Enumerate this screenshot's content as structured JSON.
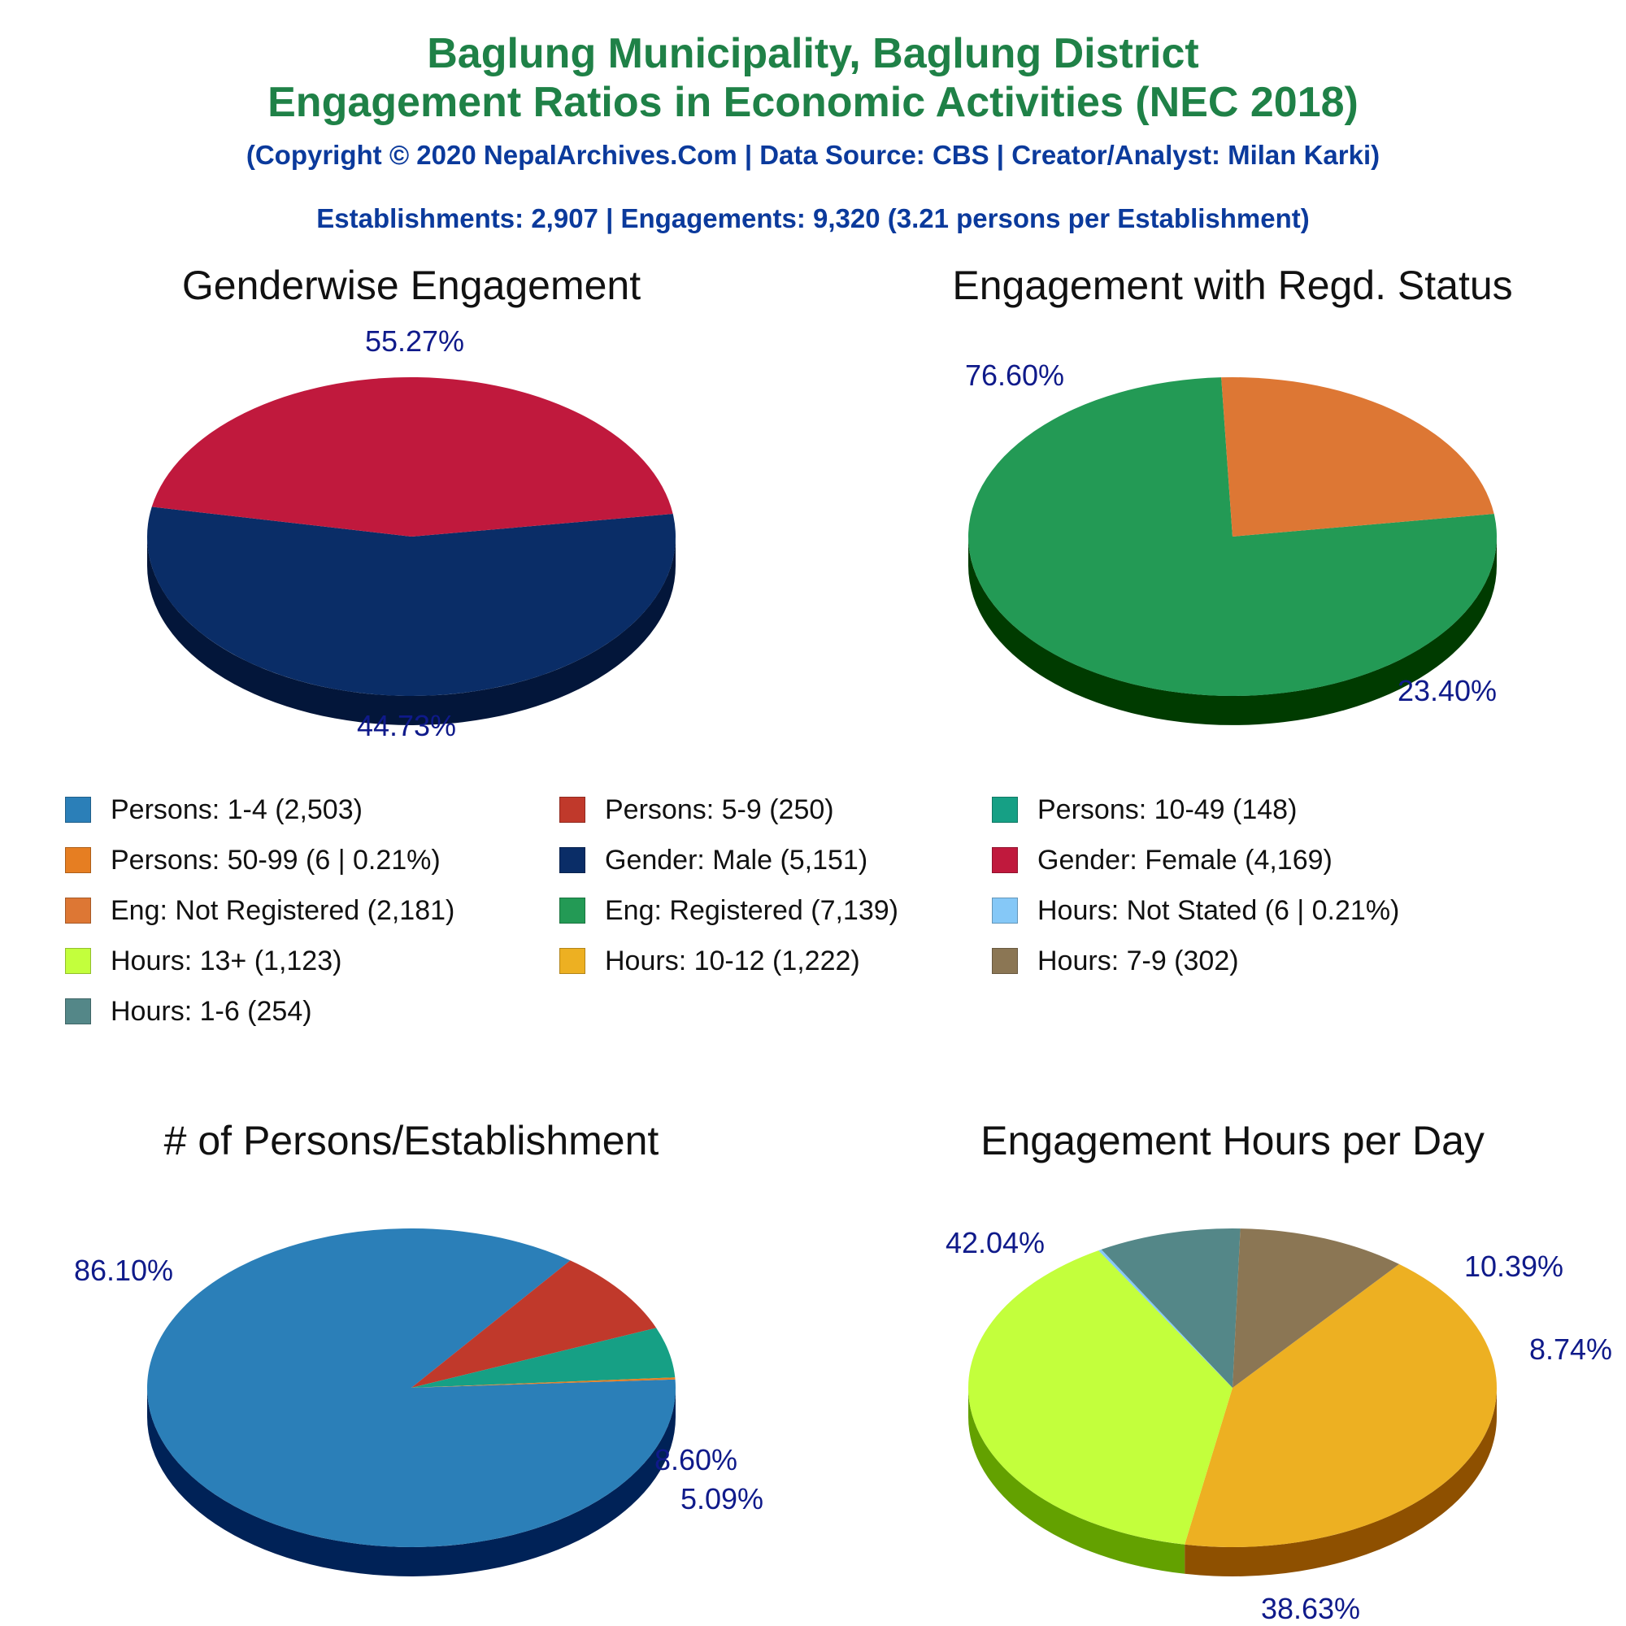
{
  "header": {
    "title_line1": "Baglung Municipality, Baglung District",
    "title_line2": "Engagement Ratios in Economic Activities (NEC 2018)",
    "copyright": "(Copyright © 2020 NepalArchives.Com | Data Source: CBS | Creator/Analyst: Milan Karki)",
    "summary": "Establishments: 2,907 | Engagements: 9,320 (3.21 persons per Establishment)"
  },
  "legend": [
    {
      "label": "Persons: 1-4 (2,503)",
      "color": "#2b7fb8"
    },
    {
      "label": "Persons: 5-9 (250)",
      "color": "#c0392b"
    },
    {
      "label": "Persons: 10-49 (148)",
      "color": "#16a085"
    },
    {
      "label": "Persons: 50-99 (6 | 0.21%)",
      "color": "#e67e22"
    },
    {
      "label": "Gender: Male (5,151)",
      "color": "#0a2d67"
    },
    {
      "label": "Gender: Female (4,169)",
      "color": "#c0193d"
    },
    {
      "label": "Eng: Not Registered (2,181)",
      "color": "#dd7734"
    },
    {
      "label": "Eng: Registered (7,139)",
      "color": "#239a55"
    },
    {
      "label": "Hours: Not Stated (6 | 0.21%)",
      "color": "#85c8f7"
    },
    {
      "label": "Hours: 13+ (1,123)",
      "color": "#c3ff3c"
    },
    {
      "label": "Hours: 10-12 (1,222)",
      "color": "#edb022"
    },
    {
      "label": "Hours: 7-9 (302)",
      "color": "#8b7654"
    },
    {
      "label": "Hours: 1-6 (254)",
      "color": "#548788"
    }
  ],
  "chart_data": [
    {
      "type": "pie",
      "title": "Genderwise Engagement",
      "categories": [
        "Gender: Male",
        "Gender: Female"
      ],
      "values": [
        5151,
        4169
      ],
      "percent_labels": [
        "55.27%",
        "44.73%"
      ],
      "colors": [
        "#0a2d67",
        "#c0193d"
      ],
      "side_colors": [
        "#03163a",
        "#620000"
      ]
    },
    {
      "type": "pie",
      "title": "Engagement with Regd. Status",
      "categories": [
        "Eng: Registered",
        "Eng: Not Registered"
      ],
      "values": [
        7139,
        2181
      ],
      "percent_labels": [
        "76.60%",
        "23.40%"
      ],
      "colors": [
        "#239a55",
        "#dd7734"
      ],
      "side_colors": [
        "#003b00",
        "#7a1900"
      ]
    },
    {
      "type": "pie",
      "title": "# of Persons/Establishment",
      "categories": [
        "Persons: 1-4",
        "Persons: 5-9",
        "Persons: 10-49",
        "Persons: 50-99"
      ],
      "values": [
        2503,
        250,
        148,
        6
      ],
      "percent_labels": [
        "86.10%",
        "8.60%",
        "5.09%",
        ""
      ],
      "colors": [
        "#2b7fb8",
        "#c0392b",
        "#16a085",
        "#e67e22"
      ],
      "side_colors": [
        "#002257",
        "#620000",
        "#003f25",
        "#7a2000"
      ]
    },
    {
      "type": "pie",
      "title": "Engagement Hours per Day",
      "categories": [
        "Hours: 10-12",
        "Hours: 13+",
        "Hours: Not Stated",
        "Hours: 1-6",
        "Hours: 7-9"
      ],
      "values": [
        1222,
        1123,
        6,
        254,
        302
      ],
      "percent_labels": [
        "42.04%",
        "38.63%",
        "",
        "8.74%",
        "10.39%"
      ],
      "colors": [
        "#edb022",
        "#c3ff3c",
        "#85c8f7",
        "#548788",
        "#8b7654"
      ],
      "side_colors": [
        "#8e5000",
        "#63a100",
        "#2768a0",
        "#002728",
        "#2b1600"
      ]
    }
  ]
}
